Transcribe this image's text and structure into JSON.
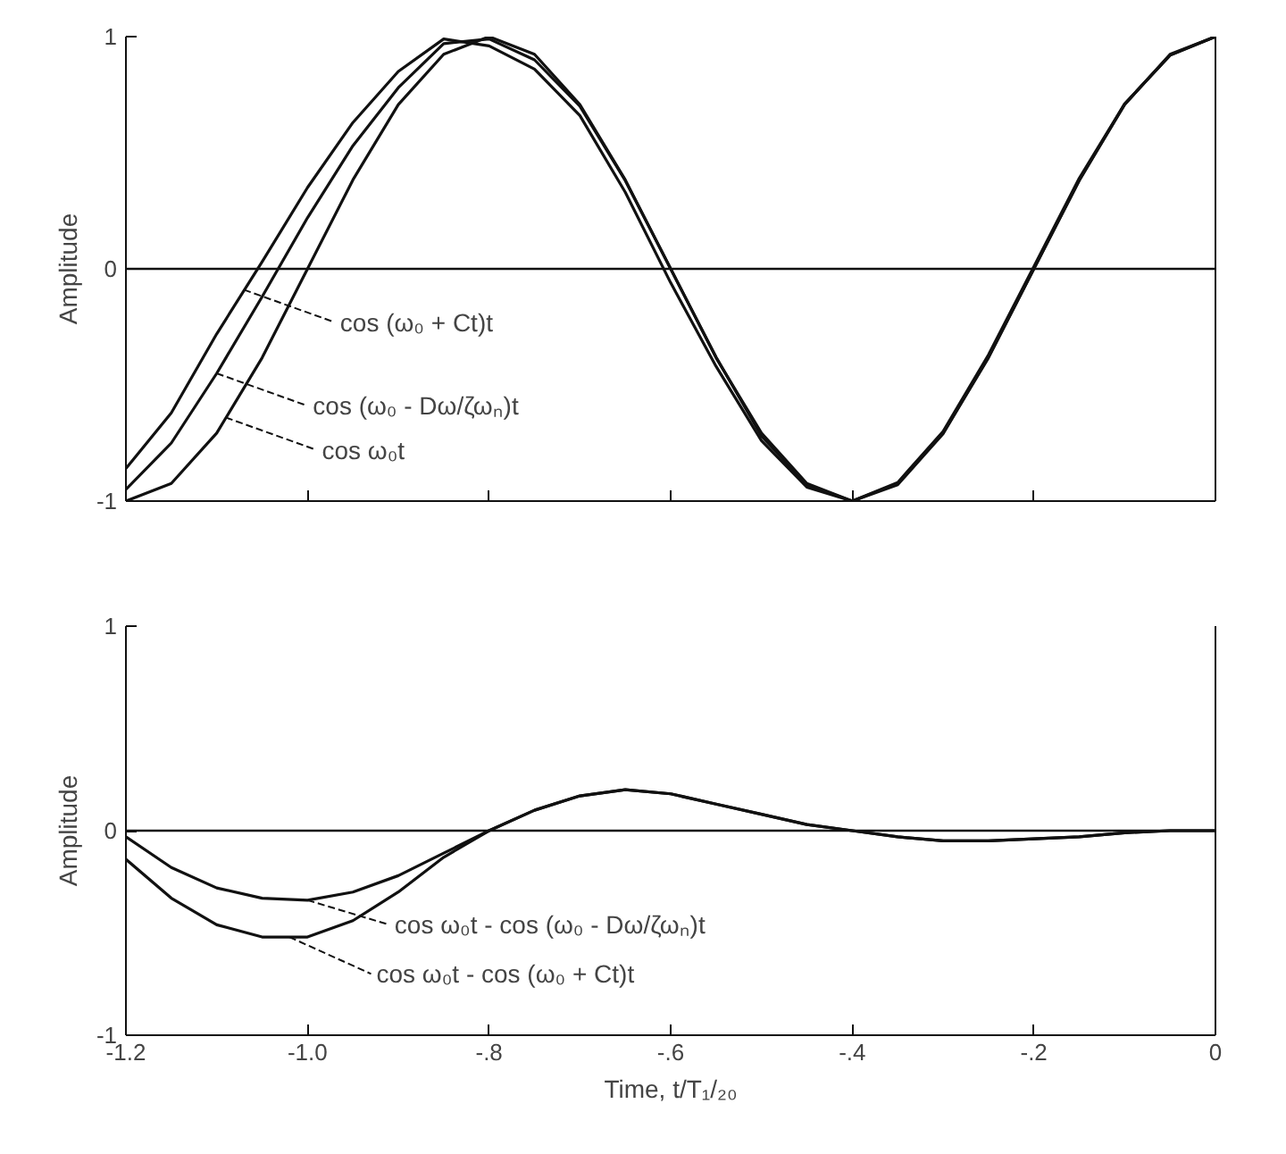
{
  "chart_data": [
    {
      "type": "line",
      "ylabel": "Amplitude",
      "x": [
        -1.2,
        -1.15,
        -1.1,
        -1.05,
        -1.0,
        -0.95,
        -0.9,
        -0.85,
        -0.8,
        -0.75,
        -0.7,
        -0.65,
        -0.6,
        -0.55,
        -0.5,
        -0.45,
        -0.4,
        -0.35,
        -0.3,
        -0.25,
        -0.2,
        -0.15,
        -0.1,
        -0.05,
        0
      ],
      "series": [
        {
          "color": "#111111",
          "values": [
            -0.86,
            -0.62,
            -0.28,
            0.03,
            0.35,
            0.63,
            0.85,
            0.99,
            0.96,
            0.86,
            0.66,
            0.33,
            -0.06,
            -0.42,
            -0.74,
            -0.94,
            -1,
            -0.92,
            -0.7,
            -0.37,
            0.01,
            0.39,
            0.71,
            0.92,
            1
          ]
        },
        {
          "color": "#111111",
          "values": [
            -0.95,
            -0.75,
            -0.45,
            -0.12,
            0.22,
            0.53,
            0.78,
            0.97,
            0.99,
            0.9,
            0.7,
            0.38,
            0.0,
            -0.38,
            -0.72,
            -0.93,
            -1,
            -0.93,
            -0.71,
            -0.38,
            0.0,
            0.38,
            0.71,
            0.92,
            1
          ]
        },
        {
          "color": "#111111",
          "values": [
            -1,
            -0.924,
            -0.707,
            -0.383,
            0,
            0.383,
            0.707,
            0.924,
            1,
            0.924,
            0.707,
            0.383,
            0,
            -0.383,
            -0.707,
            -0.924,
            -1,
            -0.924,
            -0.707,
            -0.383,
            0,
            0.383,
            0.707,
            0.924,
            1
          ]
        }
      ],
      "xlim": [
        -1.2,
        0
      ],
      "xticks": [
        -1.2,
        -1.0,
        -0.8,
        -0.6,
        -0.4,
        -0.2,
        0
      ],
      "ylim": [
        -1,
        1
      ],
      "yticks": [
        -1,
        0,
        1
      ],
      "tick_labels": "y",
      "grid": false,
      "ref_lines": [
        {
          "axis": "y",
          "value": 0
        }
      ],
      "annotations": [
        {
          "text": "cos (ω₀ + Ct)t",
          "x": -1.07,
          "y": -0.09
        },
        {
          "text": "cos (ω₀ - Dω/ζωₙ)t",
          "x": -1.1,
          "y": -0.45
        },
        {
          "text": "cos ω₀t",
          "x": -1.09,
          "y": -0.64
        }
      ]
    },
    {
      "type": "line",
      "ylabel": "Amplitude",
      "xlabel": "Time, t/T₁/₂₀",
      "x": [
        -1.2,
        -1.15,
        -1.1,
        -1.05,
        -1.0,
        -0.95,
        -0.9,
        -0.85,
        -0.8,
        -0.75,
        -0.7,
        -0.65,
        -0.6,
        -0.55,
        -0.5,
        -0.45,
        -0.4,
        -0.35,
        -0.3,
        -0.25,
        -0.2,
        -0.15,
        -0.1,
        -0.05,
        0
      ],
      "series": [
        {
          "color": "#111111",
          "values": [
            -0.03,
            -0.18,
            -0.28,
            -0.33,
            -0.34,
            -0.3,
            -0.22,
            -0.11,
            0.0,
            0.1,
            0.17,
            0.2,
            0.18,
            0.13,
            0.08,
            0.03,
            0,
            -0.03,
            -0.05,
            -0.05,
            -0.04,
            -0.03,
            -0.01,
            0,
            0
          ]
        },
        {
          "color": "#111111",
          "values": [
            -0.14,
            -0.33,
            -0.46,
            -0.52,
            -0.52,
            -0.44,
            -0.3,
            -0.13,
            0.0,
            0.1,
            0.17,
            0.2,
            0.18,
            0.13,
            0.08,
            0.03,
            0,
            -0.03,
            -0.05,
            -0.05,
            -0.04,
            -0.03,
            -0.01,
            0,
            0
          ]
        }
      ],
      "xlim": [
        -1.2,
        0
      ],
      "xticks": [
        {
          "value": -1.2,
          "label": "-1.2"
        },
        {
          "value": -1.0,
          "label": "-1.0"
        },
        {
          "value": -0.8,
          "label": "-.8"
        },
        {
          "value": -0.6,
          "label": "-.6"
        },
        {
          "value": -0.4,
          "label": "-.4"
        },
        {
          "value": -0.2,
          "label": "-.2"
        },
        0
      ],
      "ylim": [
        -1,
        1
      ],
      "yticks": [
        -1,
        0,
        1
      ],
      "grid": false,
      "ref_lines": [
        {
          "axis": "y",
          "value": 0
        }
      ],
      "annotations": [
        {
          "text": "cos ω₀t - cos (ω₀ - Dω/ζωₙ)t",
          "x": -1.0,
          "y": -0.34
        },
        {
          "text": "cos ω₀t - cos (ω₀ + Ct)t",
          "x": -1.02,
          "y": -0.52
        }
      ]
    }
  ]
}
